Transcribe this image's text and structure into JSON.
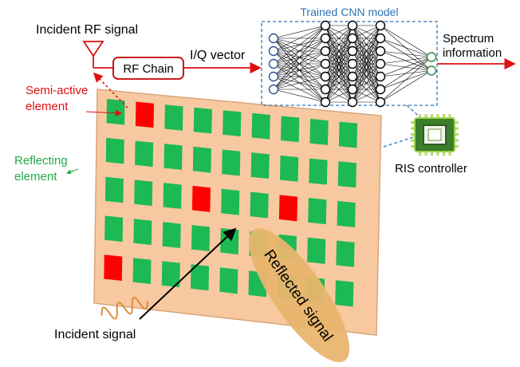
{
  "labels": {
    "incident_rf_signal": "Incident RF signal",
    "rf_chain": "RF Chain",
    "iq_vector": "I/Q vector",
    "cnn_model": "Trained CNN model",
    "spectrum_line1": "Spectrum",
    "spectrum_line2": "information",
    "semi_active_line1": "Semi-active",
    "semi_active_line2": "element",
    "reflecting_line1": "Reflecting",
    "reflecting_line2": "element",
    "ris_controller": "RIS controller",
    "reflected_signal": "Reflected signal",
    "incident_signal": "Incident signal"
  },
  "colors": {
    "red_text": "#e01010",
    "green_text": "#22aa44",
    "blue_text": "#2e75b6",
    "panel_fill": "#f8c9a0",
    "panel_stroke": "#d9a57a",
    "element_green": "#1db954",
    "element_red": "#ff0000",
    "ellipse_fill": "#e8b56e",
    "node_blue": "#2f5597",
    "node_green": "#2e8b3e"
  },
  "network": {
    "layer_sizes": [
      5,
      7,
      7,
      7,
      2
    ],
    "layer_colors": [
      "blue",
      "black",
      "black",
      "black",
      "green"
    ]
  },
  "ris": {
    "rows": 5,
    "cols": 9,
    "semi_active": [
      [
        0,
        1
      ],
      [
        2,
        3
      ],
      [
        2,
        6
      ],
      [
        4,
        0
      ]
    ]
  }
}
